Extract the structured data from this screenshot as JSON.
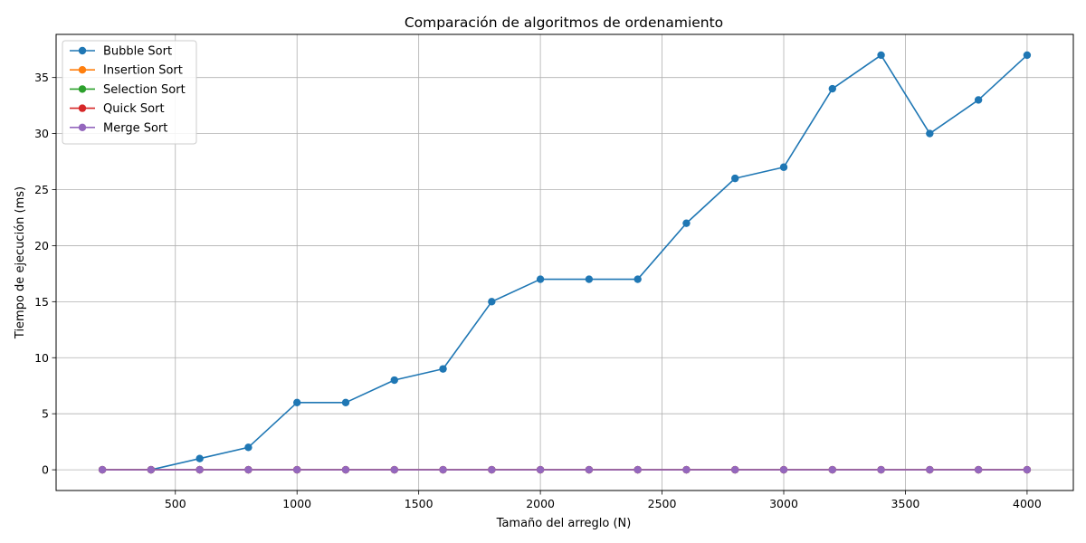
{
  "chart_data": {
    "type": "line",
    "title": "Comparación de algoritmos de ordenamiento",
    "xlabel": "Tamaño del arreglo (N)",
    "ylabel": "Tiempo de ejecución (ms)",
    "x": [
      200,
      400,
      600,
      800,
      1000,
      1200,
      1400,
      1600,
      1800,
      2000,
      2200,
      2400,
      2600,
      2800,
      3000,
      3200,
      3400,
      3600,
      3800,
      4000
    ],
    "xlim": [
      10,
      4190
    ],
    "ylim": [
      -1.85,
      38.85
    ],
    "xticks": [
      500,
      1000,
      1500,
      2000,
      2500,
      3000,
      3500,
      4000
    ],
    "yticks": [
      0,
      5,
      10,
      15,
      20,
      25,
      30,
      35
    ],
    "grid": true,
    "legend_position": "top-left",
    "series": [
      {
        "name": "Bubble Sort",
        "color": "#1f77b4",
        "values": [
          0,
          0,
          1,
          2,
          6,
          6,
          8,
          9,
          15,
          17,
          17,
          17,
          22,
          26,
          27,
          34,
          37,
          30,
          33,
          37
        ]
      },
      {
        "name": "Insertion Sort",
        "color": "#ff7f0e",
        "values": [
          0,
          0,
          0,
          0,
          0,
          0,
          0,
          0,
          0,
          0,
          0,
          0,
          0,
          0,
          0,
          0,
          0,
          0,
          0,
          0
        ]
      },
      {
        "name": "Selection Sort",
        "color": "#2ca02c",
        "values": [
          0,
          0,
          0,
          0,
          0,
          0,
          0,
          0,
          0,
          0,
          0,
          0,
          0,
          0,
          0,
          0,
          0,
          0,
          0,
          0
        ]
      },
      {
        "name": "Quick Sort",
        "color": "#d62728",
        "values": [
          0,
          0,
          0,
          0,
          0,
          0,
          0,
          0,
          0,
          0,
          0,
          0,
          0,
          0,
          0,
          0,
          0,
          0,
          0,
          0
        ]
      },
      {
        "name": "Merge Sort",
        "color": "#9467bd",
        "values": [
          0,
          0,
          0,
          0,
          0,
          0,
          0,
          0,
          0,
          0,
          0,
          0,
          0,
          0,
          0,
          0,
          0,
          0,
          0,
          0
        ]
      }
    ]
  }
}
